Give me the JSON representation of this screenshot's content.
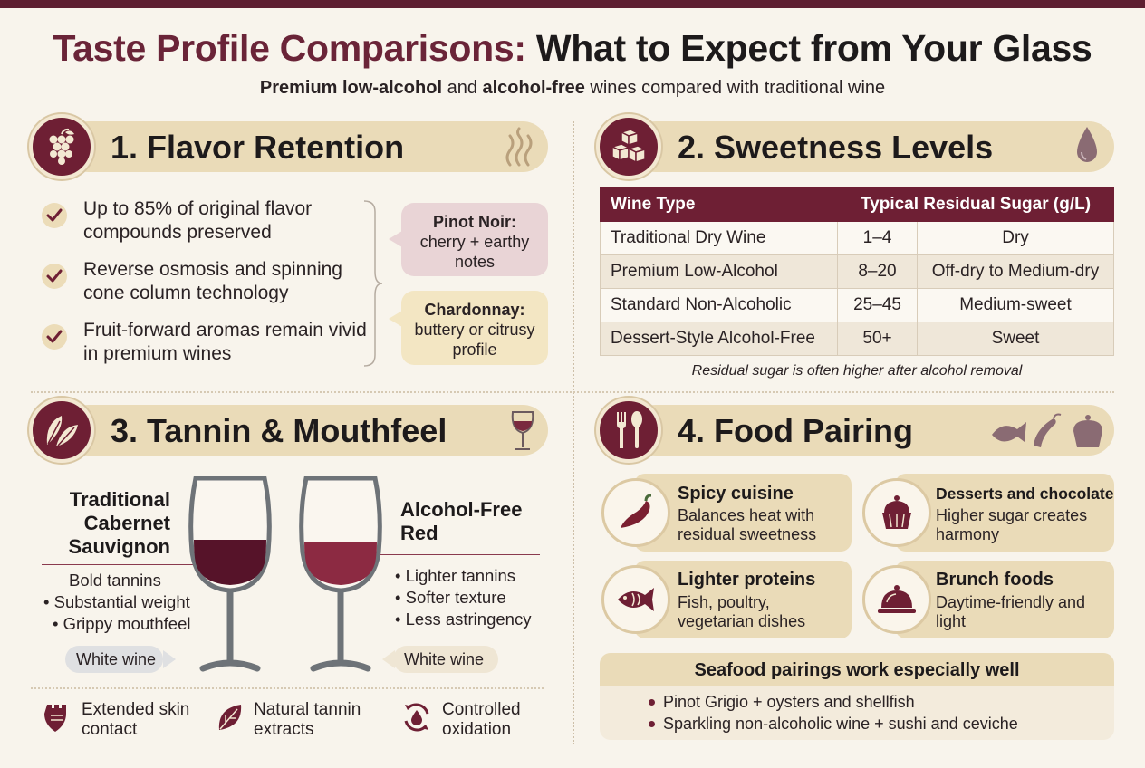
{
  "header": {
    "title_colored": "Taste Profile Comparisons:",
    "title_rest": " What to Expect from Your Glass",
    "subtitle_b1": "Premium low-alcohol",
    "subtitle_t1": " and ",
    "subtitle_b2": "alcohol-free",
    "subtitle_t2": " wines compared with traditional wine"
  },
  "colors": {
    "wine": "#6e1f34",
    "gold": "#eadbb8",
    "background": "#f8f4ec"
  },
  "flavor": {
    "title": "1. Flavor Retention",
    "icon": "grapes-icon",
    "items": [
      "Up to 85% of original flavor compounds preserved",
      "Reverse osmosis and spinning cone column technology",
      "Fruit-forward aromas remain vivid in premium wines"
    ],
    "pinot_title": "Pinot Noir:",
    "pinot_text": "cherry + earthy notes",
    "chardonnay_title": "Chardonnay:",
    "chardonnay_text": "buttery or citrusy profile"
  },
  "sweetness": {
    "title": "2. Sweetness Levels",
    "headers": [
      "Wine Type",
      "Typical Residual Sugar (g/L)"
    ],
    "rows": [
      [
        "Traditional Dry Wine",
        "1–4",
        "Dry"
      ],
      [
        "Premium Low-Alcohol",
        "8–20",
        "Off-dry to Medium-dry"
      ],
      [
        "Standard Non-Alcoholic",
        "25–45",
        "Medium-sweet"
      ],
      [
        "Dessert-Style Alcohol-Free",
        "50+",
        "Sweet"
      ]
    ],
    "note": "Residual sugar is often higher after alcohol removal"
  },
  "tannin": {
    "title": "3. Tannin & Mouthfeel",
    "left_label": "Traditional Cabernet Sauvignon",
    "left_traits": [
      "Bold tannins",
      "• Substantial weight",
      "• Grippy mouthfeel"
    ],
    "right_label": "Alcohol-Free Red",
    "right_traits": [
      "• Lighter tannins",
      "• Softer texture",
      "• Less astringency"
    ],
    "left_pill": "White wine",
    "right_pill": "White wine",
    "features": [
      "Extended skin contact",
      "Natural tannin extracts",
      "Controlled oxidation"
    ]
  },
  "food": {
    "title": "4. Food Pairing",
    "cards": [
      {
        "title": "Spicy cuisine",
        "desc": "Balances heat with residual sweetness",
        "icon": "chili-icon"
      },
      {
        "title": "Desserts and chocolate",
        "desc": "Higher sugar creates harmony",
        "icon": "cupcake-icon"
      },
      {
        "title": "Lighter proteins",
        "desc": "Fish, poultry, vegetarian dishes",
        "icon": "fish-icon"
      },
      {
        "title": "Brunch foods",
        "desc": "Daytime-friendly and light",
        "icon": "cloche-icon"
      }
    ],
    "seafood_title": "Seafood pairings work especially well",
    "seafood_items": [
      "Pinot Grigio + oysters and shellfish",
      "Sparkling non-alcoholic wine + sushi and ceviche"
    ]
  }
}
